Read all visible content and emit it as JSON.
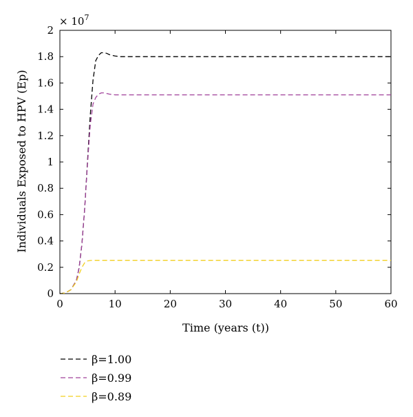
{
  "chart_data": {
    "type": "line",
    "xlabel": "Time (years (t))",
    "ylabel": "Individuals Exposed to HPV (Ep)",
    "y_multiplier": "× 10",
    "y_multiplier_exponent": "7",
    "xlim": [
      0,
      60
    ],
    "ylim": [
      0,
      2
    ],
    "x_ticks": [
      0,
      10,
      20,
      30,
      40,
      50,
      60
    ],
    "x_tick_labels": [
      "0",
      "10",
      "20",
      "30",
      "40",
      "50",
      "60"
    ],
    "y_ticks": [
      0,
      0.2,
      0.4,
      0.6,
      0.8,
      1.0,
      1.2,
      1.4,
      1.6,
      1.8,
      2.0
    ],
    "y_tick_labels": [
      "0",
      "0.2",
      "0.4",
      "0.6",
      "0.8",
      "1",
      "1.2",
      "1.4",
      "1.6",
      "1.8",
      "2"
    ],
    "grid": false,
    "legend_position": "below-left",
    "series": [
      {
        "name": "β=1.00",
        "color": "#000000",
        "x": [
          0,
          1,
          2,
          3,
          3.5,
          4,
          4.5,
          5,
          5.5,
          6,
          6.5,
          7,
          7.5,
          8,
          8.5,
          9,
          10,
          11,
          12,
          15,
          20,
          30,
          40,
          50,
          60
        ],
        "y": [
          0,
          0.005,
          0.03,
          0.1,
          0.2,
          0.38,
          0.65,
          1.0,
          1.35,
          1.62,
          1.77,
          1.81,
          1.83,
          1.83,
          1.825,
          1.815,
          1.805,
          1.8,
          1.8,
          1.8,
          1.8,
          1.8,
          1.8,
          1.8,
          1.8
        ]
      },
      {
        "name": "β=0.99",
        "color": "#a0409a",
        "x": [
          0,
          1,
          2,
          3,
          3.5,
          4,
          4.5,
          5,
          5.5,
          6,
          6.5,
          7,
          7.5,
          8,
          8.5,
          9,
          10,
          12,
          15,
          20,
          30,
          40,
          50,
          60
        ],
        "y": [
          0,
          0.005,
          0.03,
          0.1,
          0.2,
          0.38,
          0.65,
          0.98,
          1.28,
          1.44,
          1.49,
          1.515,
          1.525,
          1.525,
          1.52,
          1.515,
          1.51,
          1.51,
          1.51,
          1.51,
          1.51,
          1.51,
          1.51,
          1.51
        ]
      },
      {
        "name": "β=0.89",
        "color": "#f2cf1f",
        "x": [
          0,
          1,
          2,
          3,
          3.5,
          4,
          4.5,
          5,
          5.5,
          6,
          7,
          8,
          10,
          15,
          20,
          30,
          40,
          50,
          60
        ],
        "y": [
          0,
          0.005,
          0.03,
          0.09,
          0.15,
          0.2,
          0.235,
          0.248,
          0.252,
          0.253,
          0.253,
          0.253,
          0.253,
          0.253,
          0.253,
          0.253,
          0.253,
          0.253,
          0.253
        ]
      }
    ]
  }
}
